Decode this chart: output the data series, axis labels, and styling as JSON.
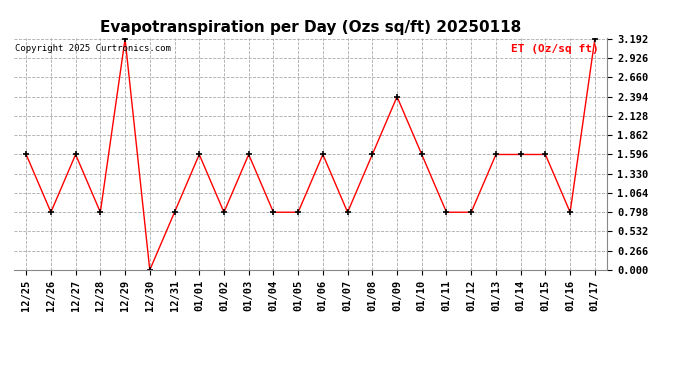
{
  "title": "Evapotranspiration per Day (Ozs sq/ft) 20250118",
  "copyright": "Copyright 2025 Curtronics.com",
  "legend_label": "ET (Oz/sq ft)",
  "x_labels": [
    "12/25",
    "12/26",
    "12/27",
    "12/28",
    "12/29",
    "12/30",
    "12/31",
    "01/01",
    "01/02",
    "01/03",
    "01/04",
    "01/05",
    "01/06",
    "01/07",
    "01/08",
    "01/09",
    "01/10",
    "01/11",
    "01/12",
    "01/13",
    "01/14",
    "01/15",
    "01/16",
    "01/17"
  ],
  "y_values": [
    1.596,
    0.798,
    1.596,
    0.798,
    3.192,
    0.0,
    0.798,
    1.596,
    0.798,
    1.596,
    0.798,
    0.798,
    1.596,
    0.798,
    1.596,
    2.394,
    1.596,
    0.798,
    0.798,
    1.596,
    1.596,
    1.596,
    0.798,
    3.192
  ],
  "line_color": "red",
  "marker_color": "black",
  "marker": "+",
  "ylim": [
    0.0,
    3.192
  ],
  "yticks": [
    0.0,
    0.266,
    0.532,
    0.798,
    1.064,
    1.33,
    1.596,
    1.862,
    2.128,
    2.394,
    2.66,
    2.926,
    3.192
  ],
  "background_color": "white",
  "grid_color": "#aaaaaa",
  "title_fontsize": 11,
  "tick_fontsize": 7.5,
  "legend_fontsize": 8,
  "copyright_fontsize": 6.5
}
